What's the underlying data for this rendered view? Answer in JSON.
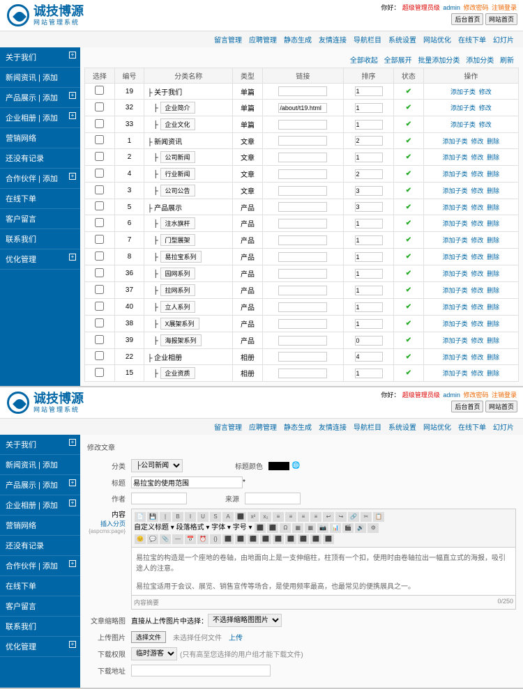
{
  "logo": {
    "title": "诚技博源",
    "sub": "网站管理系统"
  },
  "header": {
    "prefix": "你好：",
    "role": "超级管理员级",
    "user": "admin",
    "pwd": "修改密码",
    "logout": "注销登录",
    "btn1": "后台首页",
    "btn2": "网站首页"
  },
  "nav": [
    "留言管理",
    "应聘管理",
    "静态生成",
    "友情连接",
    "导航栏目",
    "系统设置",
    "网站优化",
    "在线下单",
    "幻灯片"
  ],
  "side": [
    {
      "t": "关于我们",
      "p": 1
    },
    {
      "t": "新闻资讯 | 添加",
      "p": 0
    },
    {
      "t": "产品展示 | 添加",
      "p": 1
    },
    {
      "t": "企业相册 | 添加",
      "p": 1
    },
    {
      "t": "营销网络",
      "p": 0
    },
    {
      "t": "还没有记录",
      "p": 0
    },
    {
      "t": "合作伙伴 | 添加",
      "p": 1
    },
    {
      "t": "在线下单",
      "p": 0
    },
    {
      "t": "客户留言",
      "p": 0
    },
    {
      "t": "联系我们",
      "p": 0
    },
    {
      "t": "优化管理",
      "p": 1
    }
  ],
  "toolbar": {
    "a": "全部收起",
    "b": "全部展开",
    "c": "批量添加分类",
    "d": "添加分类",
    "e": "刷新"
  },
  "cols": [
    "选择",
    "编号",
    "分类名称",
    "类型",
    "链接",
    "排序",
    "状态",
    "操作"
  ],
  "rows": [
    {
      "id": 19,
      "lv": 0,
      "name": "关于我们",
      "type": "单篇",
      "link": "",
      "sort": 1,
      "st": 1
    },
    {
      "id": 32,
      "lv": 1,
      "name": "企业简介",
      "type": "单篇",
      "link": "/about/t19.html",
      "sort": 1,
      "st": 1
    },
    {
      "id": 33,
      "lv": 1,
      "name": "企业文化",
      "type": "单篇",
      "link": "",
      "sort": 1,
      "st": 1
    },
    {
      "id": 1,
      "lv": 0,
      "name": "新闻资讯",
      "type": "文章",
      "link": "",
      "sort": 2,
      "st": 1
    },
    {
      "id": 2,
      "lv": 1,
      "name": "公司新闻",
      "type": "文章",
      "link": "",
      "sort": 1,
      "st": 1
    },
    {
      "id": 4,
      "lv": 1,
      "name": "行业新闻",
      "type": "文章",
      "link": "",
      "sort": 2,
      "st": 1
    },
    {
      "id": 3,
      "lv": 1,
      "name": "公司公告",
      "type": "文章",
      "link": "",
      "sort": 3,
      "st": 1
    },
    {
      "id": 5,
      "lv": 0,
      "name": "产品展示",
      "type": "产品",
      "link": "",
      "sort": 3,
      "st": 1
    },
    {
      "id": 6,
      "lv": 1,
      "name": "注水旗杆",
      "type": "产品",
      "link": "",
      "sort": 1,
      "st": 1
    },
    {
      "id": 7,
      "lv": 1,
      "name": "门型展架",
      "type": "产品",
      "link": "",
      "sort": 1,
      "st": 1
    },
    {
      "id": 8,
      "lv": 1,
      "name": "易拉宝系列",
      "type": "产品",
      "link": "",
      "sort": 1,
      "st": 1
    },
    {
      "id": 36,
      "lv": 1,
      "name": "园网系列",
      "type": "产品",
      "link": "",
      "sort": 1,
      "st": 1
    },
    {
      "id": 37,
      "lv": 1,
      "name": "拉网系列",
      "type": "产品",
      "link": "",
      "sort": 1,
      "st": 1
    },
    {
      "id": 40,
      "lv": 1,
      "name": "立人系列",
      "type": "产品",
      "link": "",
      "sort": 1,
      "st": 1
    },
    {
      "id": 38,
      "lv": 1,
      "name": "X展架系列",
      "type": "产品",
      "link": "",
      "sort": 1,
      "st": 1
    },
    {
      "id": 39,
      "lv": 1,
      "name": "海报架系列",
      "type": "产品",
      "link": "",
      "sort": 0,
      "st": 1
    },
    {
      "id": 22,
      "lv": 0,
      "name": "企业相册",
      "type": "相册",
      "link": "",
      "sort": 4,
      "st": 1
    },
    {
      "id": 15,
      "lv": 1,
      "name": "企业资质",
      "type": "相册",
      "link": "",
      "sort": 1,
      "st": 1
    }
  ],
  "op": {
    "add": "添加子类",
    "edit": "修改",
    "del": "删除"
  },
  "form": {
    "title": "修改文章",
    "cat": "分类",
    "catv": "├公司新闻",
    "tcolor": "标题颜色",
    "name": "标题",
    "namev": "易拉宝的使用范围",
    "author": "作者",
    "source": "来源",
    "content": "内容",
    "insertpage": "插入分页",
    "pagecode": "{aspcms:page}",
    "body1": "易拉宝的构造是一个座地的卷轴，由地面向上是一支伸缩柱，柱顶有一个扣，使用时由卷轴拉出一幅直立式的海报，吸引途人的注意。",
    "body2": "易拉宝适用于会议、展览、销售宣传等场合，是使用频率最高，也最常见的便携展具之一。",
    "summary": "内容摘要",
    "count": "0/250",
    "thumb": "文章缩略图",
    "thumbtxt": "直接从上传图片中选择：",
    "thumbsel": "不选择缩略图图片",
    "upload": "上传图片",
    "uploadbtn": "选择文件",
    "nofile": "未选择任何文件",
    "uploadact": "上传",
    "viewauth": "下载权限",
    "viewsel": "临时游客",
    "viewtxt": "(只有高至您选择的用户组才能下载文件)",
    "dlurl": "下载地址"
  }
}
